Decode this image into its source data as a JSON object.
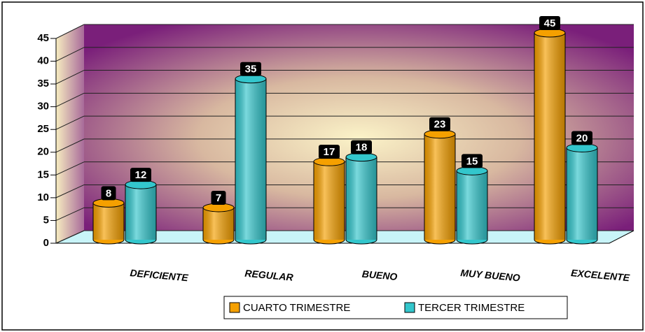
{
  "chart_data": {
    "type": "bar",
    "categories": [
      "DEFICIENTE",
      "REGULAR",
      "BUENO",
      "MUY BUENO",
      "EXCELENTE"
    ],
    "series": [
      {
        "name": "CUARTO TRIMESTRE",
        "color": "#f5a000",
        "values": [
          8,
          7,
          17,
          23,
          45
        ]
      },
      {
        "name": "TERCER TRIMESTRE",
        "color": "#33c6cc",
        "values": [
          12,
          35,
          18,
          15,
          20
        ]
      }
    ],
    "ylim": [
      0,
      45
    ],
    "yticks": [
      0,
      5,
      10,
      15,
      20,
      25,
      30,
      35,
      40,
      45
    ],
    "grid": true
  }
}
